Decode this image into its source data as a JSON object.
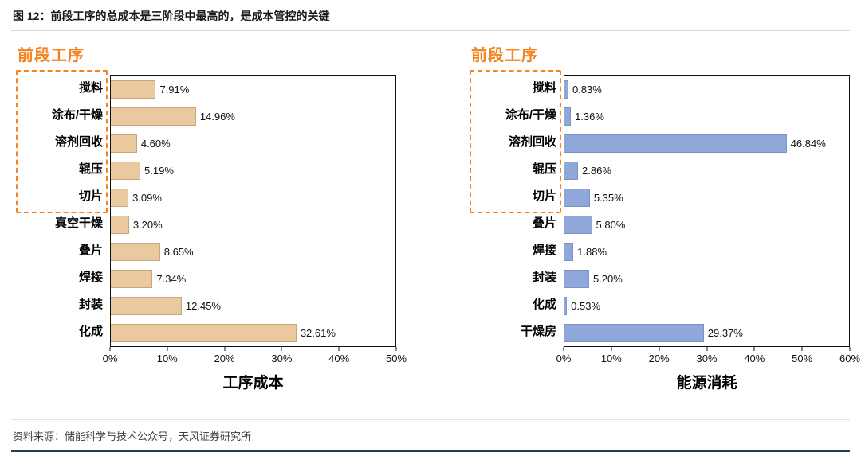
{
  "figure": {
    "title": "图 12：前段工序的总成本是三阶段中最高的，是成本管控的关键",
    "source": "资料来源：储能科学与技术公众号，天风证券研究所"
  },
  "colors": {
    "accent_orange": "#f5831f",
    "left_bar_fill": "#eac9a0",
    "left_bar_border": "#c9a678",
    "right_bar_fill": "#8fa7d9",
    "right_bar_border": "#7a92c6",
    "plot_border": "#111111",
    "bottom_rule": "#2b3a5c"
  },
  "chart_data": [
    {
      "type": "bar",
      "orientation": "horizontal",
      "title": "工序成本",
      "annotation": "前段工序",
      "highlight_label": "前段工序",
      "highlight_count": 5,
      "categories": [
        "搅料",
        "涂布/干燥",
        "溶剂回收",
        "辊压",
        "切片",
        "真空干燥",
        "叠片",
        "焊接",
        "封装",
        "化成"
      ],
      "values": [
        7.91,
        14.96,
        4.6,
        5.19,
        3.09,
        3.2,
        8.65,
        7.34,
        12.45,
        32.61
      ],
      "labels": [
        "7.91%",
        "14.96%",
        "4.60%",
        "5.19%",
        "3.09%",
        "3.20%",
        "8.65%",
        "7.34%",
        "12.45%",
        "32.61%"
      ],
      "xlim": [
        0,
        50
      ],
      "xticks": [
        "0%",
        "10%",
        "20%",
        "30%",
        "40%",
        "50%"
      ],
      "grid": false,
      "legend": false
    },
    {
      "type": "bar",
      "orientation": "horizontal",
      "title": "能源消耗",
      "annotation": "前段工序",
      "highlight_label": "前段工序",
      "highlight_count": 5,
      "categories": [
        "搅料",
        "涂布/干燥",
        "溶剂回收",
        "辊压",
        "切片",
        "叠片",
        "焊接",
        "封装",
        "化成",
        "干燥房"
      ],
      "values": [
        0.83,
        1.36,
        46.84,
        2.86,
        5.35,
        5.8,
        1.88,
        5.2,
        0.53,
        29.37
      ],
      "labels": [
        "0.83%",
        "1.36%",
        "46.84%",
        "2.86%",
        "5.35%",
        "5.80%",
        "1.88%",
        "5.20%",
        "0.53%",
        "29.37%"
      ],
      "xlim": [
        0,
        60
      ],
      "xticks": [
        "0%",
        "10%",
        "20%",
        "30%",
        "40%",
        "50%",
        "60%"
      ],
      "grid": false,
      "legend": false
    }
  ]
}
